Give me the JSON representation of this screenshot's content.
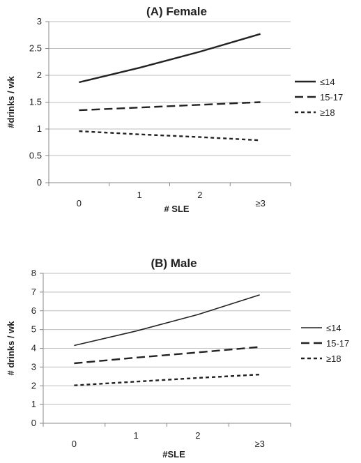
{
  "chart_data": [
    {
      "type": "line",
      "title": "(A) Female",
      "xlabel": "# SLE",
      "ylabel": "#drinks / wk",
      "categories": [
        "0",
        "1",
        "2",
        "≥3"
      ],
      "ylim": [
        0,
        3
      ],
      "yticks": [
        "0",
        "0.5",
        "1",
        "1.5",
        "2",
        "2.5",
        "3"
      ],
      "grid": true,
      "legend_position": "right",
      "series": [
        {
          "name": "≤14",
          "values": [
            1.87,
            2.14,
            2.44,
            2.77
          ],
          "style": "solid"
        },
        {
          "name": "15-17",
          "values": [
            1.35,
            1.4,
            1.45,
            1.5
          ],
          "style": "dashed"
        },
        {
          "name": "≥18",
          "values": [
            0.96,
            0.9,
            0.85,
            0.79
          ],
          "style": "dotted"
        }
      ]
    },
    {
      "type": "line",
      "title": "(B) Male",
      "xlabel": "#SLE",
      "ylabel": "# drinks / wk",
      "categories": [
        "0",
        "1",
        "2",
        "≥3"
      ],
      "ylim": [
        0,
        8
      ],
      "yticks": [
        "0",
        "1",
        "2",
        "3",
        "4",
        "5",
        "6",
        "7",
        "8"
      ],
      "grid": true,
      "legend_position": "right",
      "series": [
        {
          "name": "≤14",
          "values": [
            4.15,
            4.92,
            5.8,
            6.85
          ],
          "style": "solid"
        },
        {
          "name": "15-17",
          "values": [
            3.2,
            3.5,
            3.78,
            4.07
          ],
          "style": "dashed"
        },
        {
          "name": "≥18",
          "values": [
            2.02,
            2.22,
            2.42,
            2.6
          ],
          "style": "dotted"
        }
      ]
    }
  ],
  "colors": {
    "line": "#222222",
    "grid": "#bdbdbd"
  }
}
